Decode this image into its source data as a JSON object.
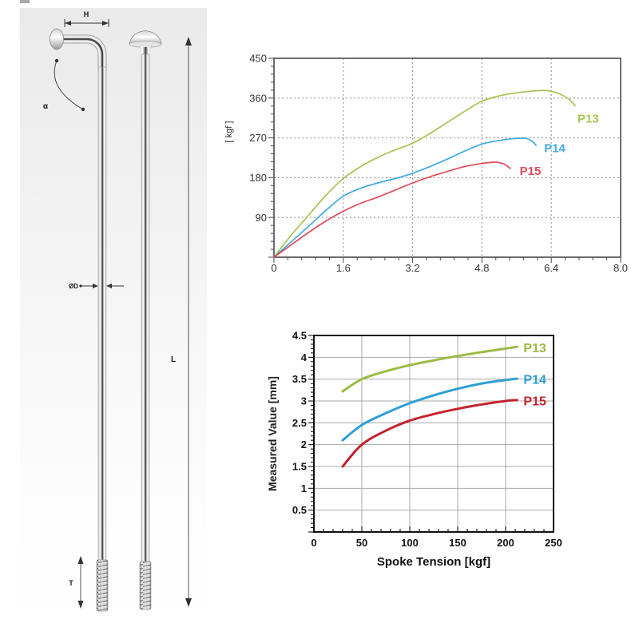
{
  "diagram": {
    "labels": {
      "h": "H",
      "alpha": "α",
      "diameter": "ØD",
      "length": "L",
      "thread": "T"
    }
  },
  "chart_data": [
    {
      "id": "tension-elongation",
      "type": "line",
      "title": "",
      "xlabel": "",
      "ylabel": "[ kgf ]",
      "xlim": [
        0,
        8.0
      ],
      "ylim": [
        0,
        450
      ],
      "xticks": [
        0,
        1.6,
        3.2,
        4.8,
        6.4,
        8.0
      ],
      "xtick_labels": [
        "0",
        "1.6",
        "3.2",
        "4.8",
        "6.4",
        "8.0"
      ],
      "yticks": [
        90,
        180,
        270,
        360,
        450
      ],
      "ytick_labels": [
        "90",
        "180",
        "270",
        "360",
        "450"
      ],
      "grid": "dashed",
      "legend_position": "end-of-line",
      "series": [
        {
          "name": "P13",
          "color": "#a6c455",
          "points": [
            [
              0,
              0
            ],
            [
              0.4,
              50
            ],
            [
              0.8,
              95
            ],
            [
              1.2,
              140
            ],
            [
              1.6,
              178
            ],
            [
              2.0,
              205
            ],
            [
              2.4,
              226
            ],
            [
              2.8,
              243
            ],
            [
              3.2,
              258
            ],
            [
              3.6,
              280
            ],
            [
              4.0,
              305
            ],
            [
              4.4,
              330
            ],
            [
              4.8,
              353
            ],
            [
              5.2,
              365
            ],
            [
              5.6,
              372
            ],
            [
              6.0,
              376
            ],
            [
              6.3,
              377
            ],
            [
              6.55,
              371
            ],
            [
              6.8,
              358
            ],
            [
              6.95,
              343
            ]
          ]
        },
        {
          "name": "P14",
          "color": "#41aadf",
          "points": [
            [
              0,
              0
            ],
            [
              0.4,
              35
            ],
            [
              0.8,
              70
            ],
            [
              1.2,
              106
            ],
            [
              1.6,
              138
            ],
            [
              2.0,
              156
            ],
            [
              2.4,
              168
            ],
            [
              2.8,
              178
            ],
            [
              3.2,
              190
            ],
            [
              3.6,
              205
            ],
            [
              4.0,
              222
            ],
            [
              4.4,
              240
            ],
            [
              4.8,
              256
            ],
            [
              5.2,
              264
            ],
            [
              5.5,
              268
            ],
            [
              5.8,
              269
            ],
            [
              5.95,
              263
            ],
            [
              6.05,
              253
            ]
          ]
        },
        {
          "name": "P15",
          "color": "#e04b5a",
          "points": [
            [
              0,
              0
            ],
            [
              0.4,
              28
            ],
            [
              0.8,
              56
            ],
            [
              1.2,
              82
            ],
            [
              1.6,
              104
            ],
            [
              2.0,
              122
            ],
            [
              2.4,
              136
            ],
            [
              2.8,
              152
            ],
            [
              3.2,
              168
            ],
            [
              3.6,
              182
            ],
            [
              4.0,
              194
            ],
            [
              4.4,
              205
            ],
            [
              4.8,
              212
            ],
            [
              5.1,
              215
            ],
            [
              5.3,
              211
            ],
            [
              5.45,
              201
            ]
          ]
        }
      ]
    },
    {
      "id": "measured-value",
      "type": "line",
      "title": "",
      "xlabel": "Spoke Tension [kgf]",
      "ylabel": "Measured Value [mm]",
      "xlim": [
        0,
        250
      ],
      "ylim": [
        0,
        4.5
      ],
      "xticks": [
        0,
        50,
        100,
        150,
        200,
        250
      ],
      "xtick_labels": [
        "0",
        "50",
        "100",
        "150",
        "200",
        "250"
      ],
      "yticks": [
        0.5,
        1,
        1.5,
        2,
        2.5,
        3,
        3.5,
        4,
        4.5
      ],
      "ytick_labels": [
        "0.5",
        "1",
        "1.5",
        "2",
        "2.5",
        "3",
        "3.5",
        "4",
        "4.5"
      ],
      "grid": "solid",
      "legend_position": "end-of-line",
      "series": [
        {
          "name": "P13",
          "color": "#9cbb45",
          "points": [
            [
              30,
              3.22
            ],
            [
              50,
              3.5
            ],
            [
              75,
              3.68
            ],
            [
              100,
              3.82
            ],
            [
              125,
              3.93
            ],
            [
              150,
              4.03
            ],
            [
              175,
              4.12
            ],
            [
              200,
              4.2
            ],
            [
              212,
              4.24
            ]
          ]
        },
        {
          "name": "P14",
          "color": "#2e9fd4",
          "points": [
            [
              30,
              2.1
            ],
            [
              50,
              2.45
            ],
            [
              75,
              2.72
            ],
            [
              100,
              2.95
            ],
            [
              125,
              3.13
            ],
            [
              150,
              3.28
            ],
            [
              175,
              3.4
            ],
            [
              200,
              3.48
            ],
            [
              212,
              3.51
            ]
          ]
        },
        {
          "name": "P15",
          "color": "#c2242e",
          "points": [
            [
              30,
              1.5
            ],
            [
              50,
              2.0
            ],
            [
              75,
              2.32
            ],
            [
              100,
              2.55
            ],
            [
              125,
              2.7
            ],
            [
              150,
              2.82
            ],
            [
              175,
              2.92
            ],
            [
              200,
              3.0
            ],
            [
              212,
              3.02
            ]
          ]
        }
      ]
    }
  ]
}
